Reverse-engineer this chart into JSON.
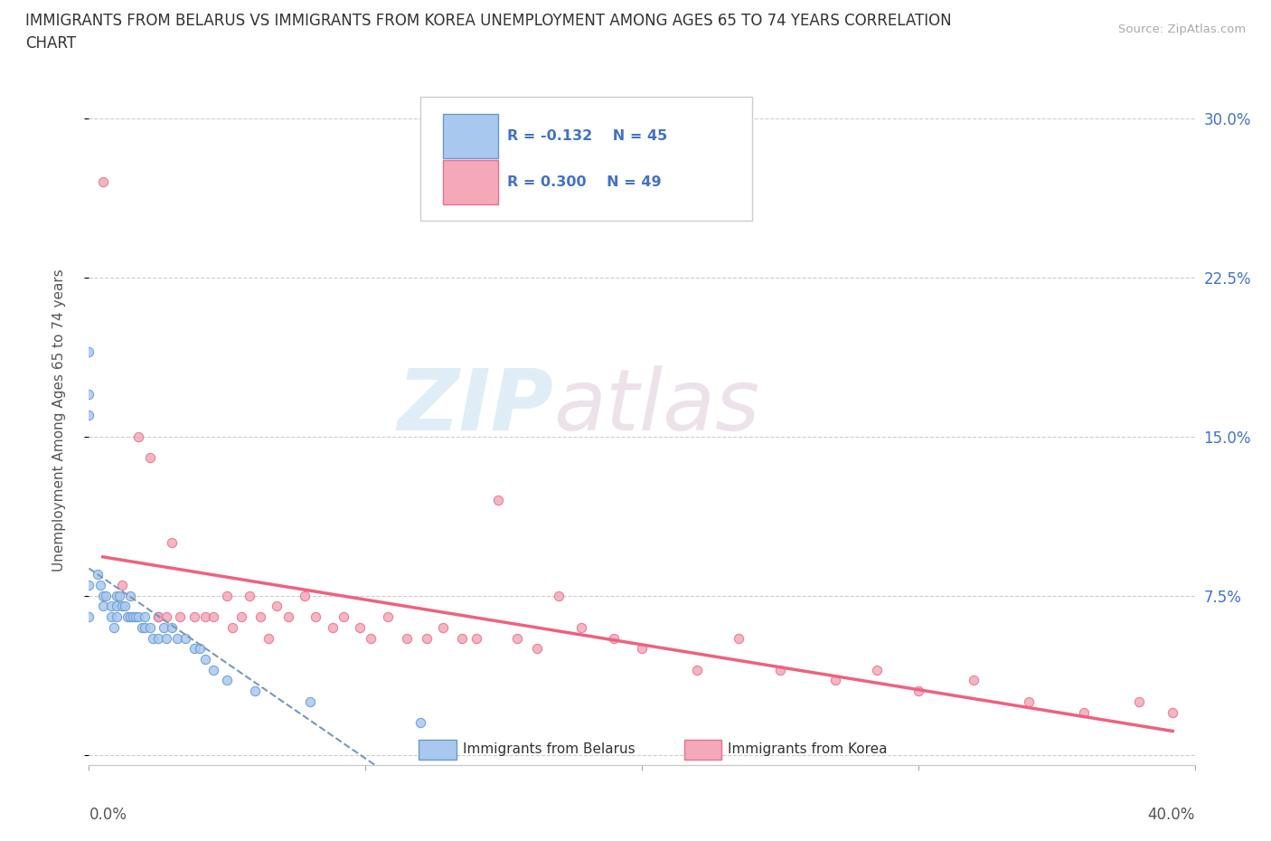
{
  "title_line1": "IMMIGRANTS FROM BELARUS VS IMMIGRANTS FROM KOREA UNEMPLOYMENT AMONG AGES 65 TO 74 YEARS CORRELATION",
  "title_line2": "CHART",
  "source_text": "Source: ZipAtlas.com",
  "ylabel": "Unemployment Among Ages 65 to 74 years",
  "xlim": [
    0.0,
    0.4
  ],
  "ylim": [
    -0.005,
    0.32
  ],
  "yticks": [
    0.0,
    0.075,
    0.15,
    0.225,
    0.3
  ],
  "ytick_labels": [
    "",
    "7.5%",
    "15.0%",
    "22.5%",
    "30.0%"
  ],
  "xticks": [
    0.0,
    0.1,
    0.2,
    0.3,
    0.4
  ],
  "gridline_color": "#cccccc",
  "background_color": "#ffffff",
  "watermark_text": "ZIPatlas",
  "color_belarus": "#a8c8f0",
  "color_korea": "#f4a8b8",
  "edge_color_belarus": "#6699cc",
  "edge_color_korea": "#e87090",
  "line_color_belarus": "#7799bb",
  "line_color_korea": "#f06080",
  "scatter_belarus_x": [
    0.0,
    0.0,
    0.0,
    0.0,
    0.0,
    0.003,
    0.004,
    0.005,
    0.005,
    0.006,
    0.008,
    0.008,
    0.009,
    0.01,
    0.01,
    0.01,
    0.011,
    0.012,
    0.013,
    0.014,
    0.015,
    0.015,
    0.016,
    0.017,
    0.018,
    0.019,
    0.02,
    0.02,
    0.022,
    0.023,
    0.025,
    0.025,
    0.027,
    0.028,
    0.03,
    0.032,
    0.035,
    0.038,
    0.04,
    0.042,
    0.045,
    0.05,
    0.06,
    0.08,
    0.12
  ],
  "scatter_belarus_y": [
    0.19,
    0.17,
    0.16,
    0.08,
    0.065,
    0.085,
    0.08,
    0.075,
    0.07,
    0.075,
    0.07,
    0.065,
    0.06,
    0.075,
    0.07,
    0.065,
    0.075,
    0.07,
    0.07,
    0.065,
    0.075,
    0.065,
    0.065,
    0.065,
    0.065,
    0.06,
    0.065,
    0.06,
    0.06,
    0.055,
    0.065,
    0.055,
    0.06,
    0.055,
    0.06,
    0.055,
    0.055,
    0.05,
    0.05,
    0.045,
    0.04,
    0.035,
    0.03,
    0.025,
    0.015
  ],
  "scatter_korea_x": [
    0.005,
    0.012,
    0.018,
    0.022,
    0.025,
    0.028,
    0.03,
    0.033,
    0.038,
    0.042,
    0.045,
    0.05,
    0.052,
    0.055,
    0.058,
    0.062,
    0.065,
    0.068,
    0.072,
    0.078,
    0.082,
    0.088,
    0.092,
    0.098,
    0.102,
    0.108,
    0.115,
    0.122,
    0.128,
    0.135,
    0.14,
    0.148,
    0.155,
    0.162,
    0.17,
    0.178,
    0.19,
    0.2,
    0.22,
    0.235,
    0.25,
    0.27,
    0.285,
    0.3,
    0.32,
    0.34,
    0.36,
    0.38,
    0.392
  ],
  "scatter_korea_y": [
    0.27,
    0.08,
    0.15,
    0.14,
    0.065,
    0.065,
    0.1,
    0.065,
    0.065,
    0.065,
    0.065,
    0.075,
    0.06,
    0.065,
    0.075,
    0.065,
    0.055,
    0.07,
    0.065,
    0.075,
    0.065,
    0.06,
    0.065,
    0.06,
    0.055,
    0.065,
    0.055,
    0.055,
    0.06,
    0.055,
    0.055,
    0.12,
    0.055,
    0.05,
    0.075,
    0.06,
    0.055,
    0.05,
    0.04,
    0.055,
    0.04,
    0.035,
    0.04,
    0.03,
    0.035,
    0.025,
    0.02,
    0.025,
    0.02
  ]
}
